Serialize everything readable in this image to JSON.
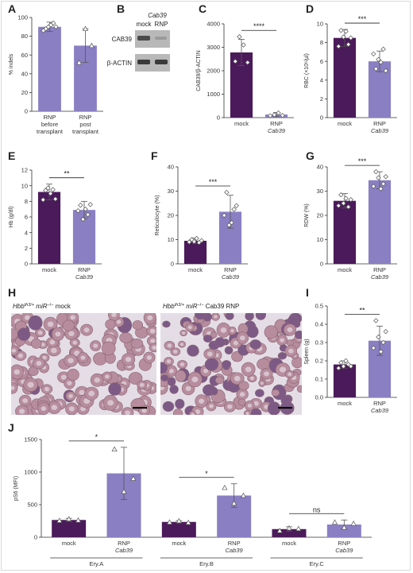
{
  "colors": {
    "mock": "#4b1a5a",
    "rnp": "#8a7fc2",
    "axis": "#333333",
    "point_fill": "#ffffff"
  },
  "blot": {
    "gene_label": "Cab39",
    "lane1": "mock",
    "lane2": "RNP",
    "row1": "CAB39",
    "row2": "β-ACTIN"
  },
  "micrographs": {
    "left_caption": [
      "Hbb",
      "th3/+",
      " miR",
      "−/−",
      " mock"
    ],
    "right_caption": [
      "Hbb",
      "th3/+",
      " miR",
      "−/−",
      " Cab39 RNP"
    ]
  },
  "chart_data": [
    {
      "panel": "A",
      "type": "bar",
      "categories": [
        [
          "RNP",
          "before",
          "transplant"
        ],
        [
          "RNP",
          "post",
          "transplant"
        ]
      ],
      "values": [
        90,
        70
      ],
      "errors": [
        5,
        18
      ],
      "points": [
        [
          86,
          88,
          90,
          92,
          94,
          90
        ],
        [
          52,
          88,
          70
        ]
      ],
      "ylabel": "% indels",
      "ylim": [
        0,
        100
      ],
      "yticks": [
        0,
        20,
        40,
        60,
        80,
        100
      ],
      "significance": null
    },
    {
      "panel": "C",
      "type": "bar",
      "categories": [
        [
          "mock"
        ],
        [
          "RNP",
          "Cab39"
        ]
      ],
      "values": [
        2780,
        130
      ],
      "errors": [
        560,
        90
      ],
      "points": [
        [
          2400,
          3450,
          3100,
          2350
        ],
        [
          80,
          120,
          200,
          90
        ]
      ],
      "ylabel": "CAB39/β-ACTIN",
      "ylim": [
        0,
        4000
      ],
      "yticks": [
        0,
        1000,
        2000,
        3000,
        4000
      ],
      "significance": "****"
    },
    {
      "panel": "D",
      "type": "bar",
      "categories": [
        [
          "mock"
        ],
        [
          "RNP",
          "Cab39"
        ]
      ],
      "values": [
        8.5,
        6.0
      ],
      "errors": [
        0.9,
        1.1
      ],
      "points": [
        [
          7.6,
          9.3,
          8.6,
          9.2,
          7.8,
          8.5
        ],
        [
          6.8,
          5.2,
          6.2,
          5.9,
          7.3,
          5.0
        ]
      ],
      "ylabel": "RBC (×10⁶/µl)",
      "ylim": [
        0,
        10
      ],
      "yticks": [
        0,
        2,
        4,
        6,
        8,
        10
      ],
      "significance": "***"
    },
    {
      "panel": "E",
      "type": "bar",
      "categories": [
        [
          "mock"
        ],
        [
          "RNP",
          "Cab39"
        ]
      ],
      "values": [
        9.2,
        6.9
      ],
      "errors": [
        1.0,
        1.1
      ],
      "points": [
        [
          8.2,
          9.4,
          9.7,
          9.0,
          9.5,
          8.3
        ],
        [
          6.8,
          7.5,
          5.7,
          7.0,
          6.3,
          7.6
        ]
      ],
      "ylabel": "Hb (g/dl)",
      "ylim": [
        0,
        12
      ],
      "yticks": [
        0,
        2,
        4,
        6,
        8,
        10,
        12
      ],
      "significance": "**"
    },
    {
      "panel": "F",
      "type": "bar",
      "categories": [
        [
          "mock"
        ],
        [
          "RNP",
          "Cab39"
        ]
      ],
      "values": [
        9.5,
        21.5
      ],
      "errors": [
        1.2,
        6.8
      ],
      "points": [
        [
          9.0,
          10.0,
          9.2,
          10.5,
          8.8,
          9.6
        ],
        [
          20.0,
          29.5,
          16.0,
          17.0,
          22.5,
          24.0
        ]
      ],
      "ylabel": "Reticulocyte (%)",
      "ylim": [
        0,
        40
      ],
      "yticks": [
        0,
        10,
        20,
        30,
        40
      ],
      "significance": "***"
    },
    {
      "panel": "G",
      "type": "bar",
      "categories": [
        [
          "mock"
        ],
        [
          "RNP",
          "Cab39"
        ]
      ],
      "values": [
        26,
        34.5
      ],
      "errors": [
        3,
        3.5
      ],
      "points": [
        [
          24,
          28.5,
          25,
          27,
          23.5,
          26.5
        ],
        [
          32,
          38,
          35.5,
          31,
          33,
          36
        ]
      ],
      "ylabel": "RDW (%)",
      "ylim": [
        0,
        40
      ],
      "yticks": [
        0,
        10,
        20,
        30,
        40
      ],
      "significance": "***"
    },
    {
      "panel": "I",
      "type": "bar",
      "categories": [
        [
          "mock"
        ],
        [
          "RNP",
          "Cab39"
        ]
      ],
      "values": [
        0.18,
        0.31
      ],
      "errors": [
        0.02,
        0.08
      ],
      "points": [
        [
          0.16,
          0.19,
          0.17,
          0.2,
          0.18,
          0.17
        ],
        [
          0.27,
          0.42,
          0.33,
          0.25,
          0.3,
          0.36
        ]
      ],
      "ylabel": "Spleen (g)",
      "ylim": [
        0,
        0.5
      ],
      "yticks": [
        0.0,
        0.1,
        0.2,
        0.3,
        0.4,
        0.5
      ],
      "significance": "**"
    },
    {
      "panel": "J",
      "type": "bar",
      "categories": [
        [
          "mock"
        ],
        [
          "RNP",
          "Cab39"
        ],
        [
          "mock"
        ],
        [
          "RNP",
          "Cab39"
        ],
        [
          "mock"
        ],
        [
          "RNP",
          "Cab39"
        ]
      ],
      "groups": [
        "Ery.A",
        "Ery.B",
        "Ery.C"
      ],
      "values": [
        265,
        980,
        235,
        640,
        125,
        195
      ],
      "errors": [
        25,
        400,
        20,
        180,
        35,
        70
      ],
      "points": [
        [
          255,
          280,
          260
        ],
        [
          1350,
          700,
          900
        ],
        [
          230,
          250,
          225
        ],
        [
          760,
          520,
          640
        ],
        [
          100,
          140,
          130
        ],
        [
          230,
          150,
          210
        ]
      ],
      "ylabel": "pS6 (MFI)",
      "ylim": [
        0,
        1500
      ],
      "yticks": [
        0,
        500,
        1000,
        1500
      ],
      "significance": [
        "*",
        "*",
        "ns"
      ]
    }
  ]
}
